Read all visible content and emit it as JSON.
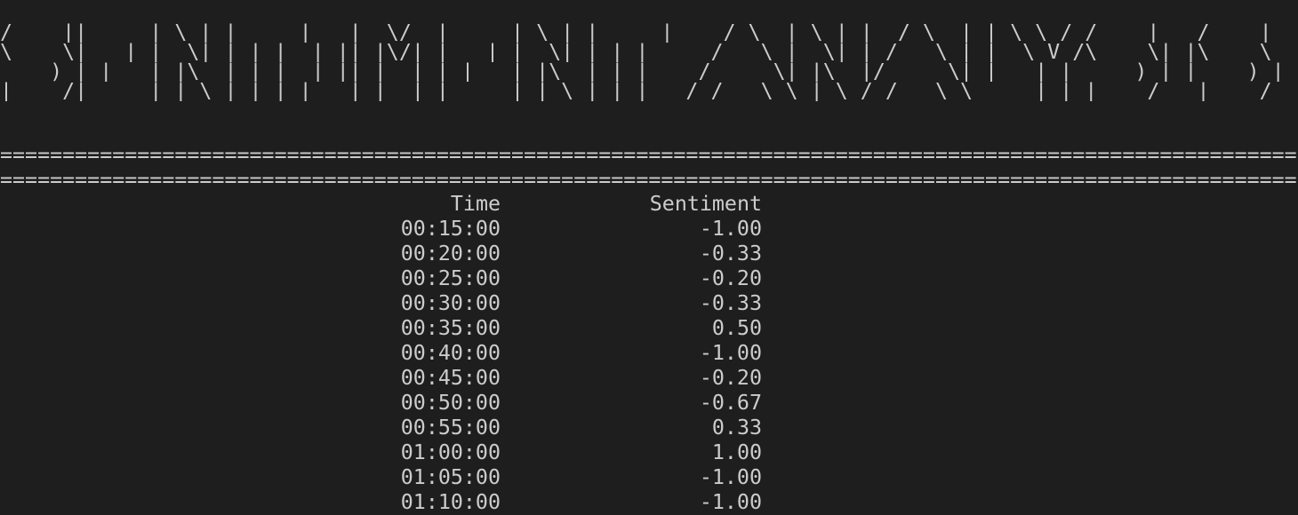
{
  "banner": {
    "lines": [
      " ____  _____ _   _ _____ ___ __  __ _____ _   _ _____      _    _   _    _    _  __   ______ ___ ____  ",
      "/ ___|| ____| \\ | |_   _|_ _|  \\/  | ____| \\ | |_   _|    / \\  | \\ | |  / \\  | | \\ \\ / / ___|_ _/ ___| ",
      "\\___ \\|  _| |  \\| | | |  | || |\\/| |  _| |  \\| | | |     / _ \\ |  \\| | / _ \\ | |  \\ V /\\___ \\| |\\___ \\ ",
      " ___) | |___| |\\  | | |  | || |  | | |___| |\\  | | |    / ___ \\| |\\  |/ ___ \\| |___| |  ___) | | ___) |",
      "|____/|_____|_| \\_| |_| |___|_|  |_|_____|_| \\_| |_|   /_/   \\_\\_| \\_/_/   \\_\\_____|_| |____/___|____/ "
    ]
  },
  "separators": [
    "========================================================================================================",
    "========================================================================================================"
  ],
  "table": {
    "header": [
      "Time",
      "Sentiment"
    ],
    "rows": [
      [
        "00:15:00",
        "-1.00"
      ],
      [
        "00:20:00",
        "-0.33"
      ],
      [
        "00:25:00",
        "-0.20"
      ],
      [
        "00:30:00",
        "-0.33"
      ],
      [
        "00:35:00",
        "0.50"
      ],
      [
        "00:40:00",
        "-1.00"
      ],
      [
        "00:45:00",
        "-0.20"
      ],
      [
        "00:50:00",
        "-0.67"
      ],
      [
        "00:55:00",
        "0.33"
      ],
      [
        "01:00:00",
        "1.00"
      ],
      [
        "01:05:00",
        "-1.00"
      ],
      [
        "01:10:00",
        "-1.00"
      ]
    ]
  }
}
